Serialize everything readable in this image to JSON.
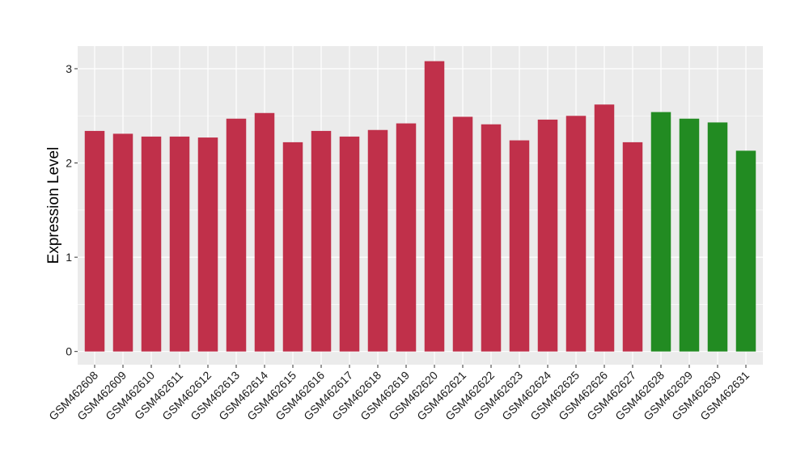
{
  "chart_data": {
    "type": "bar",
    "title": "",
    "xlabel": "",
    "ylabel": "Expression Level",
    "ylim": [
      -0.14,
      3.24
    ],
    "yticks": [
      0,
      1,
      2,
      3
    ],
    "ytick_labels": [
      "0",
      "1",
      "2",
      "3"
    ],
    "grid": true,
    "legend": "none",
    "colors": {
      "group_a": "#C0304A",
      "group_b": "#228B22",
      "panel": "#EBEBEB",
      "grid": "#FFFFFF"
    },
    "categories": [
      "GSM462608",
      "GSM462609",
      "GSM462610",
      "GSM462611",
      "GSM462612",
      "GSM462613",
      "GSM462614",
      "GSM462615",
      "GSM462616",
      "GSM462617",
      "GSM462618",
      "GSM462619",
      "GSM462620",
      "GSM462621",
      "GSM462622",
      "GSM462623",
      "GSM462624",
      "GSM462625",
      "GSM462626",
      "GSM462627",
      "GSM462628",
      "GSM462629",
      "GSM462630",
      "GSM462631"
    ],
    "values": [
      2.34,
      2.31,
      2.28,
      2.28,
      2.27,
      2.47,
      2.53,
      2.22,
      2.34,
      2.28,
      2.35,
      2.42,
      3.08,
      2.49,
      2.41,
      2.24,
      2.46,
      2.5,
      2.62,
      2.22,
      2.54,
      2.47,
      2.43,
      2.13
    ],
    "groups": [
      "a",
      "a",
      "a",
      "a",
      "a",
      "a",
      "a",
      "a",
      "a",
      "a",
      "a",
      "a",
      "a",
      "a",
      "a",
      "a",
      "a",
      "a",
      "a",
      "a",
      "b",
      "b",
      "b",
      "b"
    ]
  }
}
